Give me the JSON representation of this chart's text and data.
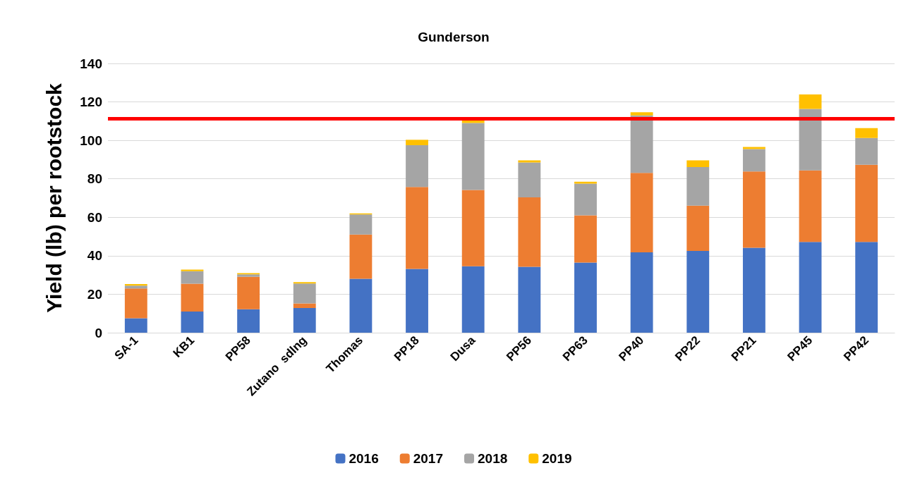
{
  "chart_data": {
    "type": "bar",
    "title": "Gunderson",
    "ylabel": "Yield (lb) per rootstock",
    "stacked": true,
    "categories": [
      "SA-1",
      "KB1",
      "PP58",
      "Zutano  sdlng",
      "Thomas",
      "PP18",
      "Dusa",
      "PP56",
      "PP63",
      "PP40",
      "PP22",
      "PP21",
      "PP45",
      "PP42"
    ],
    "series": [
      {
        "name": "2016",
        "color": "#4472c4",
        "values": [
          7.5,
          11,
          12.2,
          12.8,
          28,
          33.2,
          34.5,
          34.3,
          36.5,
          41.8,
          42.5,
          44.2,
          47.2,
          47.2
        ]
      },
      {
        "name": "2017",
        "color": "#ed7d31",
        "values": [
          15.5,
          14.5,
          16.8,
          2.4,
          23,
          42.6,
          39.7,
          36.1,
          24.5,
          41.3,
          23.6,
          39.6,
          37.2,
          40.1
        ]
      },
      {
        "name": "2018",
        "color": "#a5a5a5",
        "values": [
          1.5,
          6.5,
          1.3,
          10.4,
          10.5,
          21.7,
          34.8,
          18.1,
          16.5,
          29.9,
          20,
          11.7,
          32,
          13.9
        ]
      },
      {
        "name": "2019",
        "color": "#ffc000",
        "values": [
          0.8,
          0.8,
          0.7,
          0.7,
          0.5,
          2.8,
          1.5,
          1.1,
          1,
          1.6,
          3.5,
          1.1,
          7.5,
          5.2
        ]
      }
    ],
    "ylim": [
      0,
      140
    ],
    "yticks": [
      0,
      20,
      40,
      60,
      80,
      100,
      120,
      140
    ],
    "grid": "y",
    "legend": "bottom",
    "ref_lines": [
      {
        "axis": "y",
        "value": 111.5,
        "color": "#ff0000",
        "line_style": "solid"
      }
    ]
  }
}
